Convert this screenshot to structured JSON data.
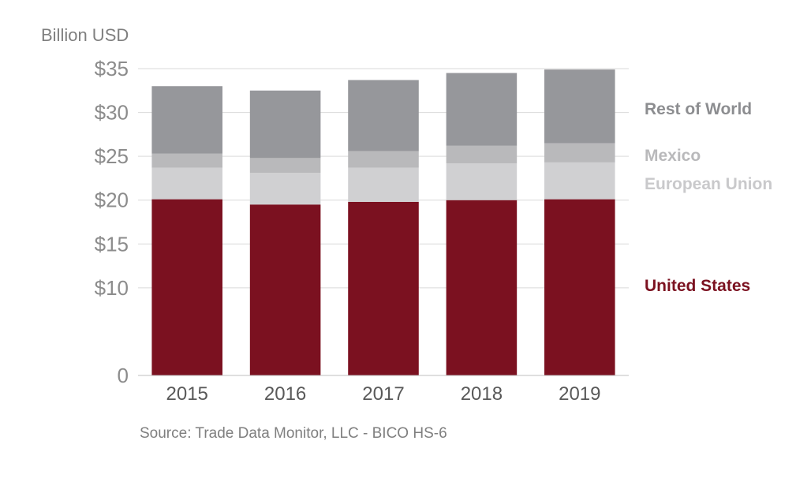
{
  "chart_data": {
    "type": "bar",
    "stacked": true,
    "ylabel": "Billion USD",
    "source": "Source: Trade Data Monitor, LLC - BICO HS-6",
    "categories": [
      "2015",
      "2016",
      "2017",
      "2018",
      "2019"
    ],
    "ylim": [
      0,
      35
    ],
    "yticks": [
      {
        "value": 0,
        "label": "0"
      },
      {
        "value": 10,
        "label": "$10"
      },
      {
        "value": 15,
        "label": "$15"
      },
      {
        "value": 20,
        "label": "$20"
      },
      {
        "value": 25,
        "label": "$25"
      },
      {
        "value": 30,
        "label": "$30"
      },
      {
        "value": 35,
        "label": "$35"
      }
    ],
    "grid": true,
    "legend_position": "right",
    "series": [
      {
        "name": "United States",
        "color": "#7b1120",
        "values": [
          20.1,
          19.5,
          19.8,
          20.0,
          20.1
        ]
      },
      {
        "name": "European Union",
        "color": "#d0d0d2",
        "values": [
          3.6,
          3.6,
          3.9,
          4.2,
          4.2
        ]
      },
      {
        "name": "Mexico",
        "color": "#b9b9bb",
        "values": [
          1.6,
          1.7,
          1.9,
          2.0,
          2.2
        ]
      },
      {
        "name": "Rest of World",
        "color": "#96979b",
        "values": [
          7.7,
          7.7,
          8.1,
          8.3,
          8.4
        ]
      }
    ]
  }
}
